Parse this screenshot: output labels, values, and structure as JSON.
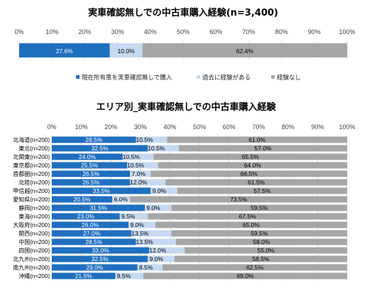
{
  "chart_data": [
    {
      "type": "bar",
      "orientation": "horizontal",
      "stacked": true,
      "title": "実車確認無しでの中古車購入経験(n=3,400)",
      "xlim": [
        0,
        100
      ],
      "tick_labels": [
        "0%",
        "10%",
        "20%",
        "30%",
        "40%",
        "50%",
        "60%",
        "70%",
        "80%",
        "90%",
        "100%"
      ],
      "categories": [
        ""
      ],
      "series": [
        {
          "name": "現在所有車を実車確認無しで購入",
          "color": "#1f6fbf",
          "values": [
            27.6
          ]
        },
        {
          "name": "過去に経験がある",
          "color": "#c5d9f1",
          "values": [
            10.0
          ]
        },
        {
          "name": "経験なし",
          "color": "#a6a6a6",
          "values": [
            62.4
          ]
        }
      ],
      "value_labels": [
        [
          "27.6%"
        ],
        [
          "10.0%"
        ],
        [
          "62.4%"
        ]
      ],
      "legend_position": "bottom",
      "grid": true
    },
    {
      "type": "bar",
      "orientation": "horizontal",
      "stacked": true,
      "title": "エリア別_実車確認無しでの中古車購入経験",
      "xlim": [
        0,
        100
      ],
      "tick_labels": [
        "0%",
        "10%",
        "20%",
        "30%",
        "40%",
        "50%",
        "60%",
        "70%",
        "80%",
        "90%",
        "100%"
      ],
      "categories": [
        "北海道(n=200)",
        "東北(n=200)",
        "北関東(n=200)",
        "東京都(n=200)",
        "首都圏(n=200)",
        "北陸(n=200)",
        "甲信越(n=200)",
        "愛知県(n=200)",
        "静岡(n=200)",
        "東海(n=200)",
        "大阪府(n=200)",
        "関西(n=200)",
        "中国(n=200)",
        "四国(n=200)",
        "北九州(n=200)",
        "南九州(n=200)",
        "沖縄(n=200)"
      ],
      "series": [
        {
          "color": "#1f6fbf",
          "values": [
            28.5,
            32.5,
            24.0,
            25.5,
            26.5,
            26.5,
            33.5,
            20.5,
            31.5,
            23.0,
            26.0,
            27.0,
            28.5,
            33.0,
            32.5,
            29.0,
            21.5
          ]
        },
        {
          "color": "#c5d9f1",
          "values": [
            10.5,
            10.5,
            10.5,
            10.5,
            7.0,
            12.0,
            9.0,
            6.0,
            9.0,
            9.5,
            9.0,
            13.5,
            13.5,
            12.0,
            9.0,
            8.5,
            9.5
          ]
        },
        {
          "color": "#a6a6a6",
          "values": [
            61.0,
            57.0,
            65.5,
            64.0,
            66.5,
            61.5,
            57.5,
            73.5,
            59.5,
            67.5,
            65.0,
            59.5,
            58.0,
            55.0,
            58.5,
            62.5,
            69.0
          ]
        }
      ],
      "value_labels": [
        [
          "28.5%",
          "32.5%",
          "24.0%",
          "25.5%",
          "26.5%",
          "26.5%",
          "33.5%",
          "20.5%",
          "31.5%",
          "23.0%",
          "26.0%",
          "27.0%",
          "28.5%",
          "33.0%",
          "32.5%",
          "29.0%",
          "21.5%"
        ],
        [
          "10.5%",
          "10.5%",
          "10.5%",
          "10.5%",
          "7.0%",
          "12.0%",
          "9.0%",
          "6.0%",
          "9.0%",
          "9.5%",
          "9.0%",
          "13.5%",
          "13.5%",
          "12.0%",
          "9.0%",
          "8.5%",
          "9.5%"
        ],
        [
          "61.0%",
          "57.0%",
          "65.5%",
          "64.0%",
          "66.5%",
          "61.5%",
          "57.5%",
          "73.5%",
          "59.5%",
          "67.5%",
          "65.0%",
          "59.5%",
          "58.0%",
          "55.0%",
          "58.5%",
          "62.5%",
          "69.0%"
        ]
      ],
      "grid": true
    }
  ]
}
